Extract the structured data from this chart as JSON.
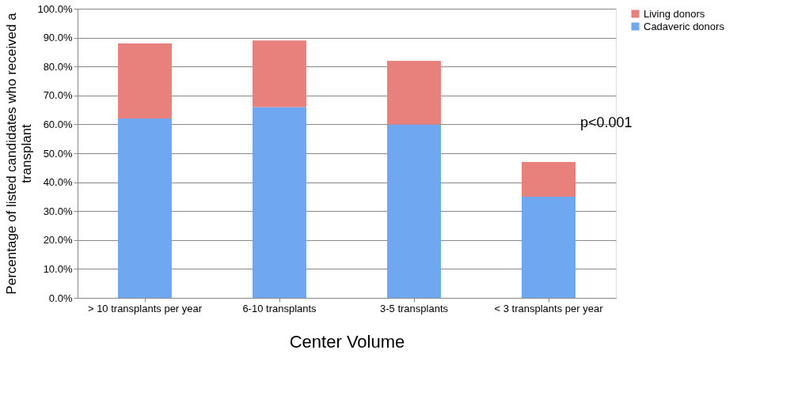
{
  "chart_data": {
    "type": "bar",
    "stacked": true,
    "xlabel": "Center Volume",
    "ylabel": "Percentage of listed candidates who received a transplant",
    "categories": [
      "> 10 transplants per year",
      "6-10 transplants",
      "3-5 transplants",
      "< 3 transplants per year"
    ],
    "series": [
      {
        "name": "Cadaveric donors",
        "color": "#6fa8f0",
        "values": [
          62,
          66,
          60,
          35
        ]
      },
      {
        "name": "Living donors",
        "color": "#e8807c",
        "values": [
          26,
          23,
          22,
          12
        ]
      }
    ],
    "ylim": [
      0,
      100
    ],
    "yticks": [
      {
        "value": 0,
        "label": "0.0%"
      },
      {
        "value": 10,
        "label": "10.0%"
      },
      {
        "value": 20,
        "label": "20.0%"
      },
      {
        "value": 30,
        "label": "30.0%"
      },
      {
        "value": 40,
        "label": "40.0%"
      },
      {
        "value": 50,
        "label": "50.0%"
      },
      {
        "value": 60,
        "label": "60.0%"
      },
      {
        "value": 70,
        "label": "70.0%"
      },
      {
        "value": 80,
        "label": "80.0%"
      },
      {
        "value": 90,
        "label": "90.0%"
      },
      {
        "value": 100,
        "label": "100.0%"
      }
    ],
    "grid": "y",
    "legend": "right",
    "annotations": [
      "p<0.001"
    ]
  }
}
